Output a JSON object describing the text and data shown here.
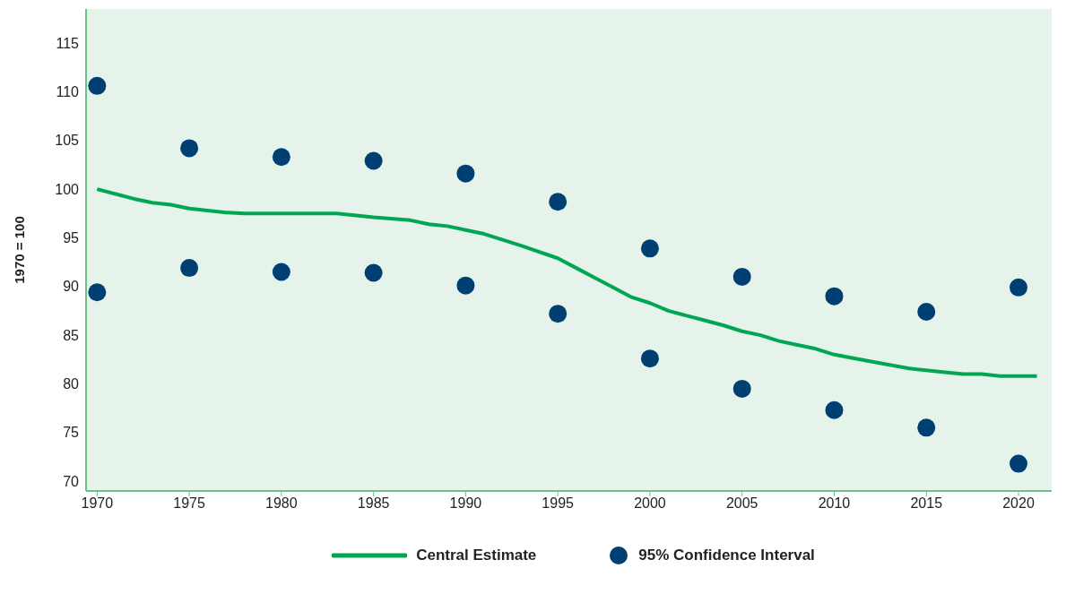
{
  "chart_data": {
    "type": "line",
    "ylabel": "1970 = 100",
    "xlim": [
      1969.4,
      2021.8
    ],
    "xticks": [
      1970,
      1975,
      1980,
      1985,
      1990,
      1995,
      2000,
      2005,
      2010,
      2015,
      2020
    ],
    "ylim": [
      69,
      118.5
    ],
    "yticks": [
      70,
      75,
      80,
      85,
      90,
      95,
      100,
      105,
      110,
      115
    ],
    "grid": false,
    "legend": "bottom",
    "series": [
      {
        "name": "Central Estimate",
        "color": "#00a651",
        "x": [
          1970,
          1971,
          1972,
          1973,
          1974,
          1975,
          1976,
          1977,
          1978,
          1980,
          1983,
          1985,
          1987,
          1988,
          1989,
          1990,
          1991,
          1992,
          1993,
          1995,
          1996,
          1997,
          1998,
          1999,
          2000,
          2001,
          2002,
          2003,
          2004,
          2005,
          2006,
          2007,
          2008,
          2009,
          2010,
          2012,
          2014,
          2016,
          2017,
          2018,
          2019,
          2021
        ],
        "values": [
          100.0,
          99.5,
          99.0,
          98.6,
          98.4,
          98.0,
          97.8,
          97.6,
          97.5,
          97.5,
          97.5,
          97.1,
          96.8,
          96.4,
          96.2,
          95.8,
          95.4,
          94.8,
          94.2,
          92.9,
          91.9,
          90.9,
          89.9,
          88.9,
          88.3,
          87.5,
          87.0,
          86.5,
          86.0,
          85.4,
          85.0,
          84.4,
          84.0,
          83.6,
          83.0,
          82.3,
          81.6,
          81.2,
          81.0,
          81.0,
          80.8,
          80.8
        ]
      },
      {
        "name": "95% Confidence Interval",
        "type": "scatter",
        "marker": "circle",
        "color": "#003f72",
        "x": [
          1970,
          1970,
          1975,
          1975,
          1980,
          1980,
          1985,
          1985,
          1990,
          1990,
          1995,
          1995,
          2000,
          2000,
          2005,
          2005,
          2010,
          2010,
          2015,
          2015,
          2020,
          2020
        ],
        "values": [
          110.6,
          89.4,
          104.2,
          91.9,
          103.3,
          91.5,
          102.9,
          91.4,
          101.6,
          90.1,
          98.7,
          87.2,
          93.9,
          82.6,
          91.0,
          79.5,
          89.0,
          77.3,
          87.4,
          75.5,
          89.9,
          71.8
        ]
      }
    ]
  }
}
